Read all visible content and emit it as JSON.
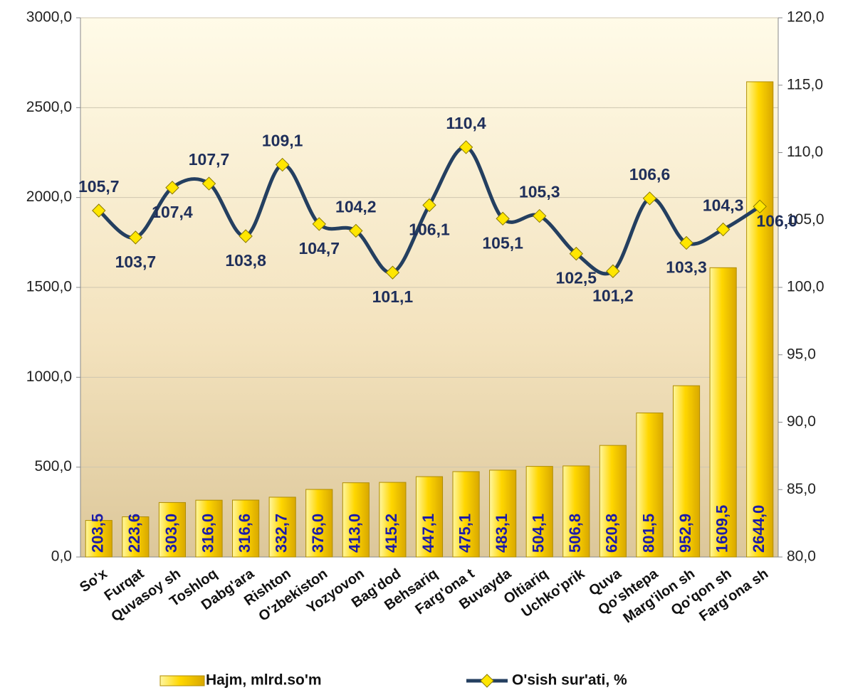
{
  "chart_data": {
    "type": "bar-line",
    "categories": [
      "So'x",
      "Furqat",
      "Quvasoy sh",
      "Toshloq",
      "Dabg'ara",
      "Rishton",
      "O'zbekiston",
      "Yozyovon",
      "Bag'dod",
      "Behsariq",
      "Farg'ona t",
      "Buvayda",
      "Oltiariq",
      "Uchko'prik",
      "Quva",
      "Qo'shtepa",
      "Marg'ilon sh",
      "Qo'qon sh",
      "Farg'ona sh"
    ],
    "series": [
      {
        "name": "Hajm, mlrd.so'm",
        "type": "bar",
        "color": "#ffd700",
        "values": [
          203.5,
          223.6,
          303.0,
          316.0,
          316.6,
          332.7,
          376.0,
          413.0,
          415.2,
          447.1,
          475.1,
          483.1,
          504.1,
          506.8,
          620.8,
          801.5,
          952.9,
          1609.5,
          2644.0
        ],
        "value_labels": [
          "203,5",
          "223,6",
          "303,0",
          "316,0",
          "316,6",
          "332,7",
          "376,0",
          "413,0",
          "415,2",
          "447,1",
          "475,1",
          "483,1",
          "504,1",
          "506,8",
          "620,8",
          "801,5",
          "952,9",
          "1609,5",
          "2644,0"
        ]
      },
      {
        "name": "O'sish sur'ati, %",
        "type": "line",
        "axis": "y2",
        "color": "#243f60",
        "values": [
          105.7,
          103.7,
          107.4,
          107.7,
          103.8,
          109.1,
          104.7,
          104.2,
          101.1,
          106.1,
          110.4,
          105.1,
          105.3,
          102.5,
          101.2,
          106.6,
          103.3,
          104.3,
          106.0
        ],
        "value_labels": [
          "105,7",
          "103,7",
          "107,4",
          "107,7",
          "103,8",
          "109,1",
          "104,7",
          "104,2",
          "101,1",
          "106,1",
          "110,4",
          "105,1",
          "105,3",
          "102,5",
          "101,2",
          "106,6",
          "103,3",
          "104,3",
          "106,0"
        ]
      }
    ],
    "ylim": [
      0,
      3000
    ],
    "yticks": [
      {
        "value": 0,
        "label": "0,0"
      },
      {
        "value": 500,
        "label": "500,0"
      },
      {
        "value": 1000,
        "label": "1000,0"
      },
      {
        "value": 1500,
        "label": "1500,0"
      },
      {
        "value": 2000,
        "label": "2000,0"
      },
      {
        "value": 2500,
        "label": "2500,0"
      },
      {
        "value": 3000,
        "label": "3000,0"
      }
    ],
    "y2lim": [
      80,
      120
    ],
    "y2ticks": [
      {
        "value": 80,
        "label": "80,0"
      },
      {
        "value": 85,
        "label": "85,0"
      },
      {
        "value": 90,
        "label": "90,0"
      },
      {
        "value": 95,
        "label": "95,0"
      },
      {
        "value": 100,
        "label": "100,0"
      },
      {
        "value": 105,
        "label": "105,0"
      },
      {
        "value": 110,
        "label": "110,0"
      },
      {
        "value": 115,
        "label": "115,0"
      },
      {
        "value": 120,
        "label": "120,0"
      }
    ],
    "grid": true,
    "legend": "bottom"
  }
}
